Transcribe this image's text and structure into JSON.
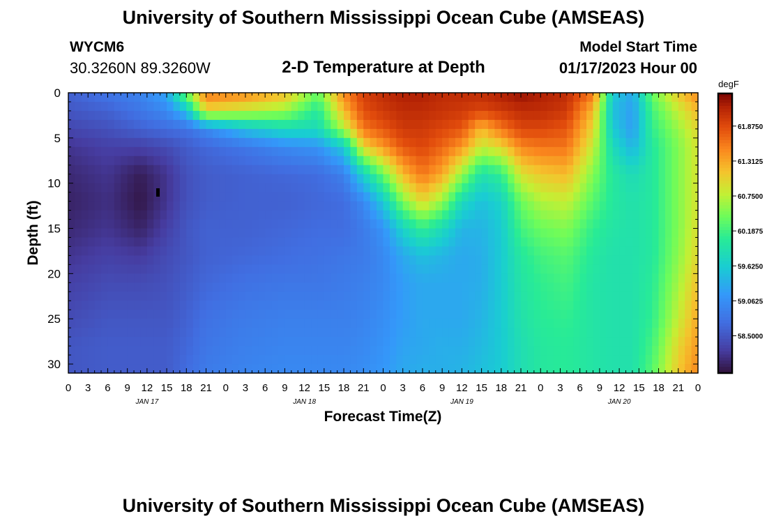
{
  "header": {
    "title": "University of Southern Mississippi Ocean Cube (AMSEAS)",
    "station_id": "WYCM6",
    "coordinates": "30.3260N  89.3260W",
    "plot_title": "2-D Temperature at Depth",
    "model_start_label": "Model Start Time",
    "model_start_value": "01/17/2023 Hour 00"
  },
  "footer": {
    "title": "University of Southern Mississippi Ocean Cube (AMSEAS)"
  },
  "chart_data": {
    "type": "heatmap",
    "title": "2-D Temperature at Depth",
    "xlabel": "Forecast Time(Z)",
    "ylabel": "Depth (ft)",
    "x_range_hours": [
      0,
      96
    ],
    "y_range_ft": [
      0,
      31
    ],
    "x_tick_hours": [
      0,
      3,
      6,
      9,
      12,
      15,
      18,
      21,
      24,
      27,
      30,
      33,
      36,
      39,
      42,
      45,
      48,
      51,
      54,
      57,
      60,
      63,
      66,
      69,
      72,
      75,
      78,
      81,
      84,
      87,
      90,
      93,
      96
    ],
    "x_tick_labels": [
      "0",
      "3",
      "6",
      "9",
      "12",
      "15",
      "18",
      "21",
      "0",
      "3",
      "6",
      "9",
      "12",
      "15",
      "18",
      "21",
      "0",
      "3",
      "6",
      "9",
      "12",
      "15",
      "18",
      "21",
      "0",
      "3",
      "6",
      "9",
      "12",
      "15",
      "18",
      "21",
      "0"
    ],
    "date_labels": [
      {
        "hour": 12,
        "label": "JAN 17"
      },
      {
        "hour": 36,
        "label": "JAN 18"
      },
      {
        "hour": 60,
        "label": "JAN 19"
      },
      {
        "hour": 84,
        "label": "JAN 20"
      }
    ],
    "y_ticks": [
      0,
      5,
      10,
      15,
      20,
      25,
      30
    ],
    "y_tick_labels": [
      "0",
      "5",
      "10",
      "15",
      "20",
      "25",
      "30"
    ],
    "colorbar": {
      "unit": "degF",
      "min": 57.9,
      "max": 62.4,
      "ticks": [
        58.5,
        59.0625,
        59.625,
        60.1875,
        60.75,
        61.3125,
        61.875
      ],
      "tick_labels": [
        "58.5000",
        "59.0625",
        "59.6250",
        "60.1875",
        "60.7500",
        "61.3125",
        "61.8750"
      ]
    },
    "grid": false,
    "depth_profiles_degF": {
      "depths_ft": [
        0,
        2,
        4,
        6,
        9,
        12,
        15,
        18,
        21,
        25,
        28,
        31
      ],
      "profiles": [
        {
          "hour": 0,
          "values": [
            58.6,
            58.5,
            58.35,
            58.2,
            58.1,
            58.05,
            58.1,
            58.2,
            58.3,
            58.4,
            58.5,
            58.5
          ]
        },
        {
          "hour": 6,
          "values": [
            58.8,
            58.6,
            58.45,
            58.3,
            58.2,
            58.15,
            58.2,
            58.3,
            58.4,
            58.5,
            58.55,
            58.55
          ]
        },
        {
          "hour": 11,
          "values": [
            58.95,
            58.8,
            58.6,
            58.3,
            58.0,
            57.95,
            58.05,
            58.25,
            58.4,
            58.5,
            58.55,
            58.55
          ]
        },
        {
          "hour": 15,
          "values": [
            59.3,
            59.0,
            58.7,
            58.4,
            58.2,
            58.2,
            58.3,
            58.4,
            58.45,
            58.5,
            58.55,
            58.55
          ]
        },
        {
          "hour": 18,
          "values": [
            60.5,
            59.5,
            58.75,
            58.55,
            58.45,
            58.45,
            58.5,
            58.5,
            58.55,
            58.6,
            58.65,
            58.7
          ]
        },
        {
          "hour": 21,
          "values": [
            61.6,
            61.0,
            59.0,
            58.65,
            58.55,
            58.55,
            58.6,
            58.6,
            58.65,
            58.75,
            58.8,
            58.85
          ]
        },
        {
          "hour": 27,
          "values": [
            61.5,
            60.8,
            59.5,
            58.8,
            58.6,
            58.6,
            58.6,
            58.65,
            58.75,
            58.85,
            58.9,
            58.95
          ]
        },
        {
          "hour": 33,
          "values": [
            61.2,
            60.6,
            59.8,
            59.0,
            58.65,
            58.6,
            58.65,
            58.7,
            58.8,
            58.9,
            58.95,
            59.0
          ]
        },
        {
          "hour": 38,
          "values": [
            60.4,
            60.0,
            59.8,
            59.1,
            58.7,
            58.65,
            58.7,
            58.75,
            58.8,
            58.9,
            58.95,
            59.0
          ]
        },
        {
          "hour": 42,
          "values": [
            61.5,
            61.2,
            60.7,
            59.6,
            58.9,
            58.7,
            58.7,
            58.8,
            58.85,
            58.9,
            58.95,
            59.0
          ]
        },
        {
          "hour": 45,
          "values": [
            61.95,
            61.85,
            61.6,
            61.0,
            59.7,
            59.0,
            58.85,
            58.85,
            58.9,
            58.95,
            59.0,
            59.05
          ]
        },
        {
          "hour": 48,
          "values": [
            62.1,
            62.0,
            61.8,
            61.4,
            60.4,
            59.6,
            59.1,
            59.0,
            59.0,
            59.05,
            59.1,
            59.15
          ]
        },
        {
          "hour": 51,
          "values": [
            62.2,
            62.1,
            62.0,
            61.8,
            61.2,
            60.5,
            59.7,
            59.3,
            59.2,
            59.2,
            59.25,
            59.3
          ]
        },
        {
          "hour": 54,
          "values": [
            62.2,
            62.1,
            62.0,
            61.9,
            61.6,
            61.0,
            60.1,
            59.5,
            59.3,
            59.3,
            59.3,
            59.35
          ]
        },
        {
          "hour": 57,
          "values": [
            62.1,
            62.05,
            61.9,
            61.7,
            61.3,
            60.6,
            59.8,
            59.4,
            59.3,
            59.3,
            59.35,
            59.35
          ]
        },
        {
          "hour": 60,
          "values": [
            62.1,
            62.0,
            61.8,
            61.4,
            60.6,
            59.8,
            59.4,
            59.3,
            59.3,
            59.3,
            59.35,
            59.4
          ]
        },
        {
          "hour": 63,
          "values": [
            62.1,
            61.9,
            61.2,
            60.8,
            59.9,
            59.5,
            59.4,
            59.35,
            59.35,
            59.4,
            59.45,
            59.5
          ]
        },
        {
          "hour": 66,
          "values": [
            62.2,
            62.0,
            61.6,
            61.0,
            60.1,
            59.7,
            59.6,
            59.6,
            59.6,
            59.6,
            59.6,
            59.6
          ]
        },
        {
          "hour": 69,
          "values": [
            62.3,
            62.1,
            61.9,
            61.5,
            60.9,
            60.4,
            60.2,
            60.0,
            59.95,
            59.9,
            59.85,
            59.85
          ]
        },
        {
          "hour": 72,
          "values": [
            62.2,
            62.1,
            61.9,
            61.6,
            61.1,
            60.7,
            60.4,
            60.2,
            60.1,
            60.05,
            60.0,
            60.0
          ]
        },
        {
          "hour": 76,
          "values": [
            62.1,
            62.0,
            61.8,
            61.6,
            61.2,
            60.8,
            60.5,
            60.3,
            60.2,
            60.1,
            60.05,
            60.05
          ]
        },
        {
          "hour": 80,
          "values": [
            61.6,
            61.2,
            61.0,
            60.8,
            60.5,
            60.3,
            60.1,
            60.0,
            59.95,
            59.95,
            59.95,
            59.95
          ]
        },
        {
          "hour": 83,
          "values": [
            59.6,
            59.5,
            59.6,
            59.8,
            60.0,
            60.0,
            59.95,
            59.9,
            59.9,
            59.9,
            59.9,
            59.9
          ]
        },
        {
          "hour": 86,
          "values": [
            59.3,
            59.2,
            59.2,
            59.4,
            59.8,
            59.9,
            59.9,
            59.9,
            59.9,
            59.9,
            59.9,
            59.9
          ]
        },
        {
          "hour": 89,
          "values": [
            60.4,
            60.2,
            60.1,
            60.0,
            60.0,
            60.0,
            60.0,
            60.0,
            60.05,
            60.1,
            60.2,
            60.3
          ]
        },
        {
          "hour": 93,
          "values": [
            61.1,
            60.8,
            60.6,
            60.5,
            60.5,
            60.5,
            60.5,
            60.55,
            60.65,
            60.8,
            61.0,
            61.1
          ]
        },
        {
          "hour": 96,
          "values": [
            61.5,
            61.2,
            61.0,
            60.9,
            60.9,
            60.9,
            60.95,
            61.0,
            61.15,
            61.3,
            61.4,
            61.5
          ]
        }
      ]
    }
  }
}
